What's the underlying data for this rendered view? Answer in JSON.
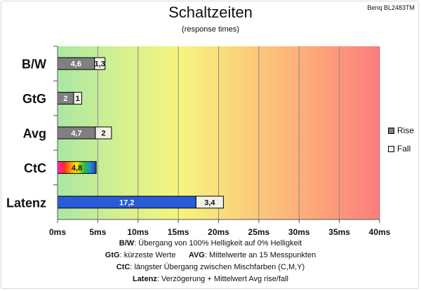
{
  "title": "Schaltzeiten",
  "subtitle": "(response times)",
  "monitor": "Benq BL2483TM",
  "legend": [
    {
      "label": "Rise",
      "color": "#808080"
    },
    {
      "label": "Fall",
      "color": "#f2f2ea"
    }
  ],
  "notes": [
    {
      "parts": [
        {
          "k": "B/W",
          "t": ":  Übergang von 100% Helligkeit auf 0% Helligkeit"
        }
      ]
    },
    {
      "parts": [
        {
          "k": "GtG",
          "t": ": kürzeste  Werte"
        },
        {
          "k": "AVG",
          "t": ": Mittelwerte  an 15 Messpunkten"
        }
      ]
    },
    {
      "parts": [
        {
          "k": "CtC",
          "t": ": längster Übergang  zwischen Mischfarben  (C,M,Y)"
        }
      ]
    },
    {
      "parts": [
        {
          "k": "Latenz",
          "t": ": Verzögerung  + Mittelwert  Avg rise/fall"
        }
      ]
    }
  ],
  "chart_data": {
    "type": "bar",
    "orientation": "horizontal",
    "stacked": true,
    "title": "Schaltzeiten",
    "subtitle": "(response times)",
    "categories": [
      "B/W",
      "GtG",
      "Avg",
      "CtC",
      "Latenz"
    ],
    "series": [
      {
        "name": "Rise",
        "values": [
          4.6,
          2,
          4.7,
          4.8,
          17.2
        ],
        "labels": [
          "4,6",
          "2",
          "4,7",
          "4,8",
          "17,2"
        ]
      },
      {
        "name": "Fall",
        "values": [
          1.3,
          1,
          2,
          null,
          3.4
        ],
        "labels": [
          "1,3",
          "1",
          "2",
          "",
          "3,4"
        ]
      }
    ],
    "xlim": [
      0,
      40
    ],
    "xticks": [
      0,
      5,
      10,
      15,
      20,
      25,
      30,
      35,
      40
    ],
    "xtick_labels": [
      "0ms",
      "5ms",
      "10ms",
      "15ms",
      "20ms",
      "25ms",
      "30ms",
      "35ms",
      "40ms"
    ],
    "background": "gradient green-yellow-red",
    "special_colors": {
      "CtC": "rainbow",
      "Latenz": "#2a5bd7"
    },
    "grid": true,
    "legend_position": "right"
  }
}
